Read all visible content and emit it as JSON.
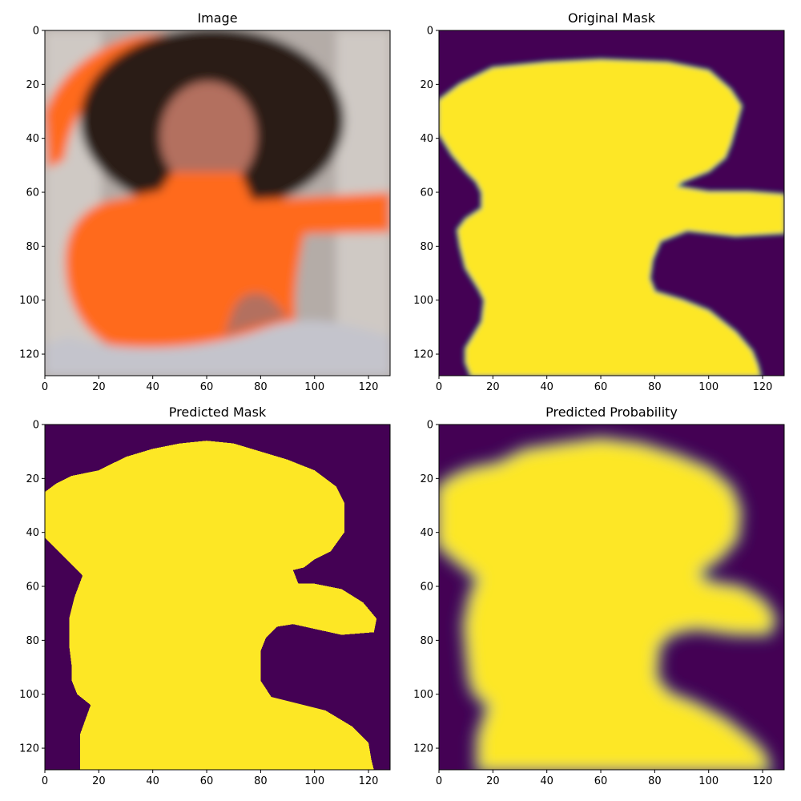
{
  "figure": {
    "colors": {
      "mask_background": "#440154",
      "mask_foreground": "#fde725",
      "mask_edge": "#21918c",
      "photo_background": "#b4aca7",
      "photo_wall": "#cfc9c4",
      "shirt": "#ff6a1a",
      "hair": "#2a1d19",
      "skin": "#b36f5e",
      "pants": "#c4c4cc"
    }
  },
  "chart_data": [
    {
      "type": "image",
      "title": "Image",
      "xlim": [
        0,
        128
      ],
      "ylim": [
        128,
        0
      ],
      "xticks": [
        "0",
        "20",
        "40",
        "60",
        "80",
        "100",
        "120"
      ],
      "yticks": [
        "0",
        "20",
        "40",
        "60",
        "80",
        "100",
        "120"
      ]
    },
    {
      "type": "heatmap",
      "title": "Original Mask",
      "colormap": "viridis",
      "xlim": [
        0,
        128
      ],
      "ylim": [
        128,
        0
      ],
      "xticks": [
        "0",
        "20",
        "40",
        "60",
        "80",
        "100",
        "120"
      ],
      "yticks": [
        "0",
        "20",
        "40",
        "60",
        "80",
        "100",
        "120"
      ],
      "foreground_outline": [
        [
          0,
          26
        ],
        [
          8,
          20
        ],
        [
          14,
          17
        ],
        [
          20,
          14
        ],
        [
          40,
          12
        ],
        [
          60,
          11
        ],
        [
          85,
          12
        ],
        [
          100,
          15
        ],
        [
          108,
          22
        ],
        [
          112,
          28
        ],
        [
          110,
          35
        ],
        [
          108,
          42
        ],
        [
          106,
          47
        ],
        [
          100,
          52
        ],
        [
          90,
          56
        ],
        [
          88,
          58
        ],
        [
          100,
          60
        ],
        [
          115,
          60
        ],
        [
          128,
          61
        ],
        [
          128,
          75
        ],
        [
          110,
          76
        ],
        [
          92,
          74
        ],
        [
          82,
          78
        ],
        [
          79,
          85
        ],
        [
          78,
          92
        ],
        [
          80,
          97
        ],
        [
          90,
          100
        ],
        [
          100,
          104
        ],
        [
          110,
          112
        ],
        [
          116,
          119
        ],
        [
          118,
          124
        ],
        [
          119,
          128
        ],
        [
          12,
          128
        ],
        [
          10,
          123
        ],
        [
          10,
          118
        ],
        [
          13,
          113
        ],
        [
          16,
          108
        ],
        [
          17,
          100
        ],
        [
          15,
          96
        ],
        [
          10,
          88
        ],
        [
          8,
          80
        ],
        [
          7,
          74
        ],
        [
          10,
          70
        ],
        [
          16,
          66
        ],
        [
          16,
          60
        ],
        [
          14,
          56
        ],
        [
          10,
          52
        ],
        [
          5,
          46
        ],
        [
          0,
          38
        ]
      ]
    },
    {
      "type": "heatmap",
      "title": "Predicted Mask",
      "colormap": "viridis",
      "xlim": [
        0,
        128
      ],
      "ylim": [
        128,
        0
      ],
      "xticks": [
        "0",
        "20",
        "40",
        "60",
        "80",
        "100",
        "120"
      ],
      "yticks": [
        "0",
        "20",
        "40",
        "60",
        "80",
        "100",
        "120"
      ],
      "foreground_outline": [
        [
          0,
          25
        ],
        [
          4,
          22
        ],
        [
          10,
          19
        ],
        [
          20,
          17
        ],
        [
          30,
          12
        ],
        [
          40,
          9
        ],
        [
          50,
          7
        ],
        [
          60,
          6
        ],
        [
          70,
          7
        ],
        [
          80,
          10
        ],
        [
          90,
          13
        ],
        [
          100,
          17
        ],
        [
          108,
          23
        ],
        [
          111,
          29
        ],
        [
          111,
          40
        ],
        [
          106,
          47
        ],
        [
          100,
          50
        ],
        [
          96,
          53
        ],
        [
          92,
          54
        ],
        [
          94,
          59
        ],
        [
          100,
          59
        ],
        [
          110,
          61
        ],
        [
          118,
          66
        ],
        [
          123,
          72
        ],
        [
          122,
          77
        ],
        [
          110,
          78
        ],
        [
          92,
          74
        ],
        [
          86,
          75
        ],
        [
          82,
          79
        ],
        [
          80,
          84
        ],
        [
          80,
          95
        ],
        [
          84,
          101
        ],
        [
          92,
          103
        ],
        [
          104,
          106
        ],
        [
          114,
          112
        ],
        [
          120,
          118
        ],
        [
          121,
          124
        ],
        [
          122,
          128
        ],
        [
          13,
          128
        ],
        [
          13,
          115
        ],
        [
          17,
          104
        ],
        [
          12,
          100
        ],
        [
          10,
          95
        ],
        [
          10,
          90
        ],
        [
          9,
          82
        ],
        [
          9,
          72
        ],
        [
          11,
          64
        ],
        [
          14,
          56
        ],
        [
          10,
          52
        ],
        [
          7,
          49
        ],
        [
          3,
          45
        ],
        [
          0,
          42
        ]
      ]
    },
    {
      "type": "heatmap",
      "title": "Predicted Probability",
      "colormap": "viridis",
      "xlim": [
        0,
        128
      ],
      "ylim": [
        128,
        0
      ],
      "xticks": [
        "0",
        "20",
        "40",
        "60",
        "80",
        "100",
        "120"
      ],
      "yticks": [
        "0",
        "20",
        "40",
        "60",
        "80",
        "100",
        "120"
      ],
      "foreground_outline": [
        [
          0,
          24
        ],
        [
          5,
          20
        ],
        [
          12,
          17
        ],
        [
          22,
          15
        ],
        [
          32,
          10
        ],
        [
          45,
          8
        ],
        [
          60,
          6
        ],
        [
          75,
          8
        ],
        [
          88,
          12
        ],
        [
          100,
          17
        ],
        [
          108,
          24
        ],
        [
          111,
          32
        ],
        [
          110,
          42
        ],
        [
          104,
          49
        ],
        [
          98,
          53
        ],
        [
          96,
          56
        ],
        [
          100,
          59
        ],
        [
          112,
          61
        ],
        [
          120,
          66
        ],
        [
          124,
          72
        ],
        [
          122,
          77
        ],
        [
          110,
          77
        ],
        [
          95,
          75
        ],
        [
          86,
          77
        ],
        [
          81,
          82
        ],
        [
          80,
          94
        ],
        [
          85,
          100
        ],
        [
          95,
          104
        ],
        [
          106,
          110
        ],
        [
          115,
          117
        ],
        [
          120,
          122
        ],
        [
          122,
          128
        ],
        [
          15,
          128
        ],
        [
          15,
          116
        ],
        [
          19,
          104
        ],
        [
          14,
          100
        ],
        [
          12,
          95
        ],
        [
          11,
          86
        ],
        [
          10,
          74
        ],
        [
          12,
          64
        ],
        [
          15,
          57
        ],
        [
          9,
          52
        ],
        [
          4,
          48
        ],
        [
          0,
          44
        ]
      ]
    }
  ]
}
